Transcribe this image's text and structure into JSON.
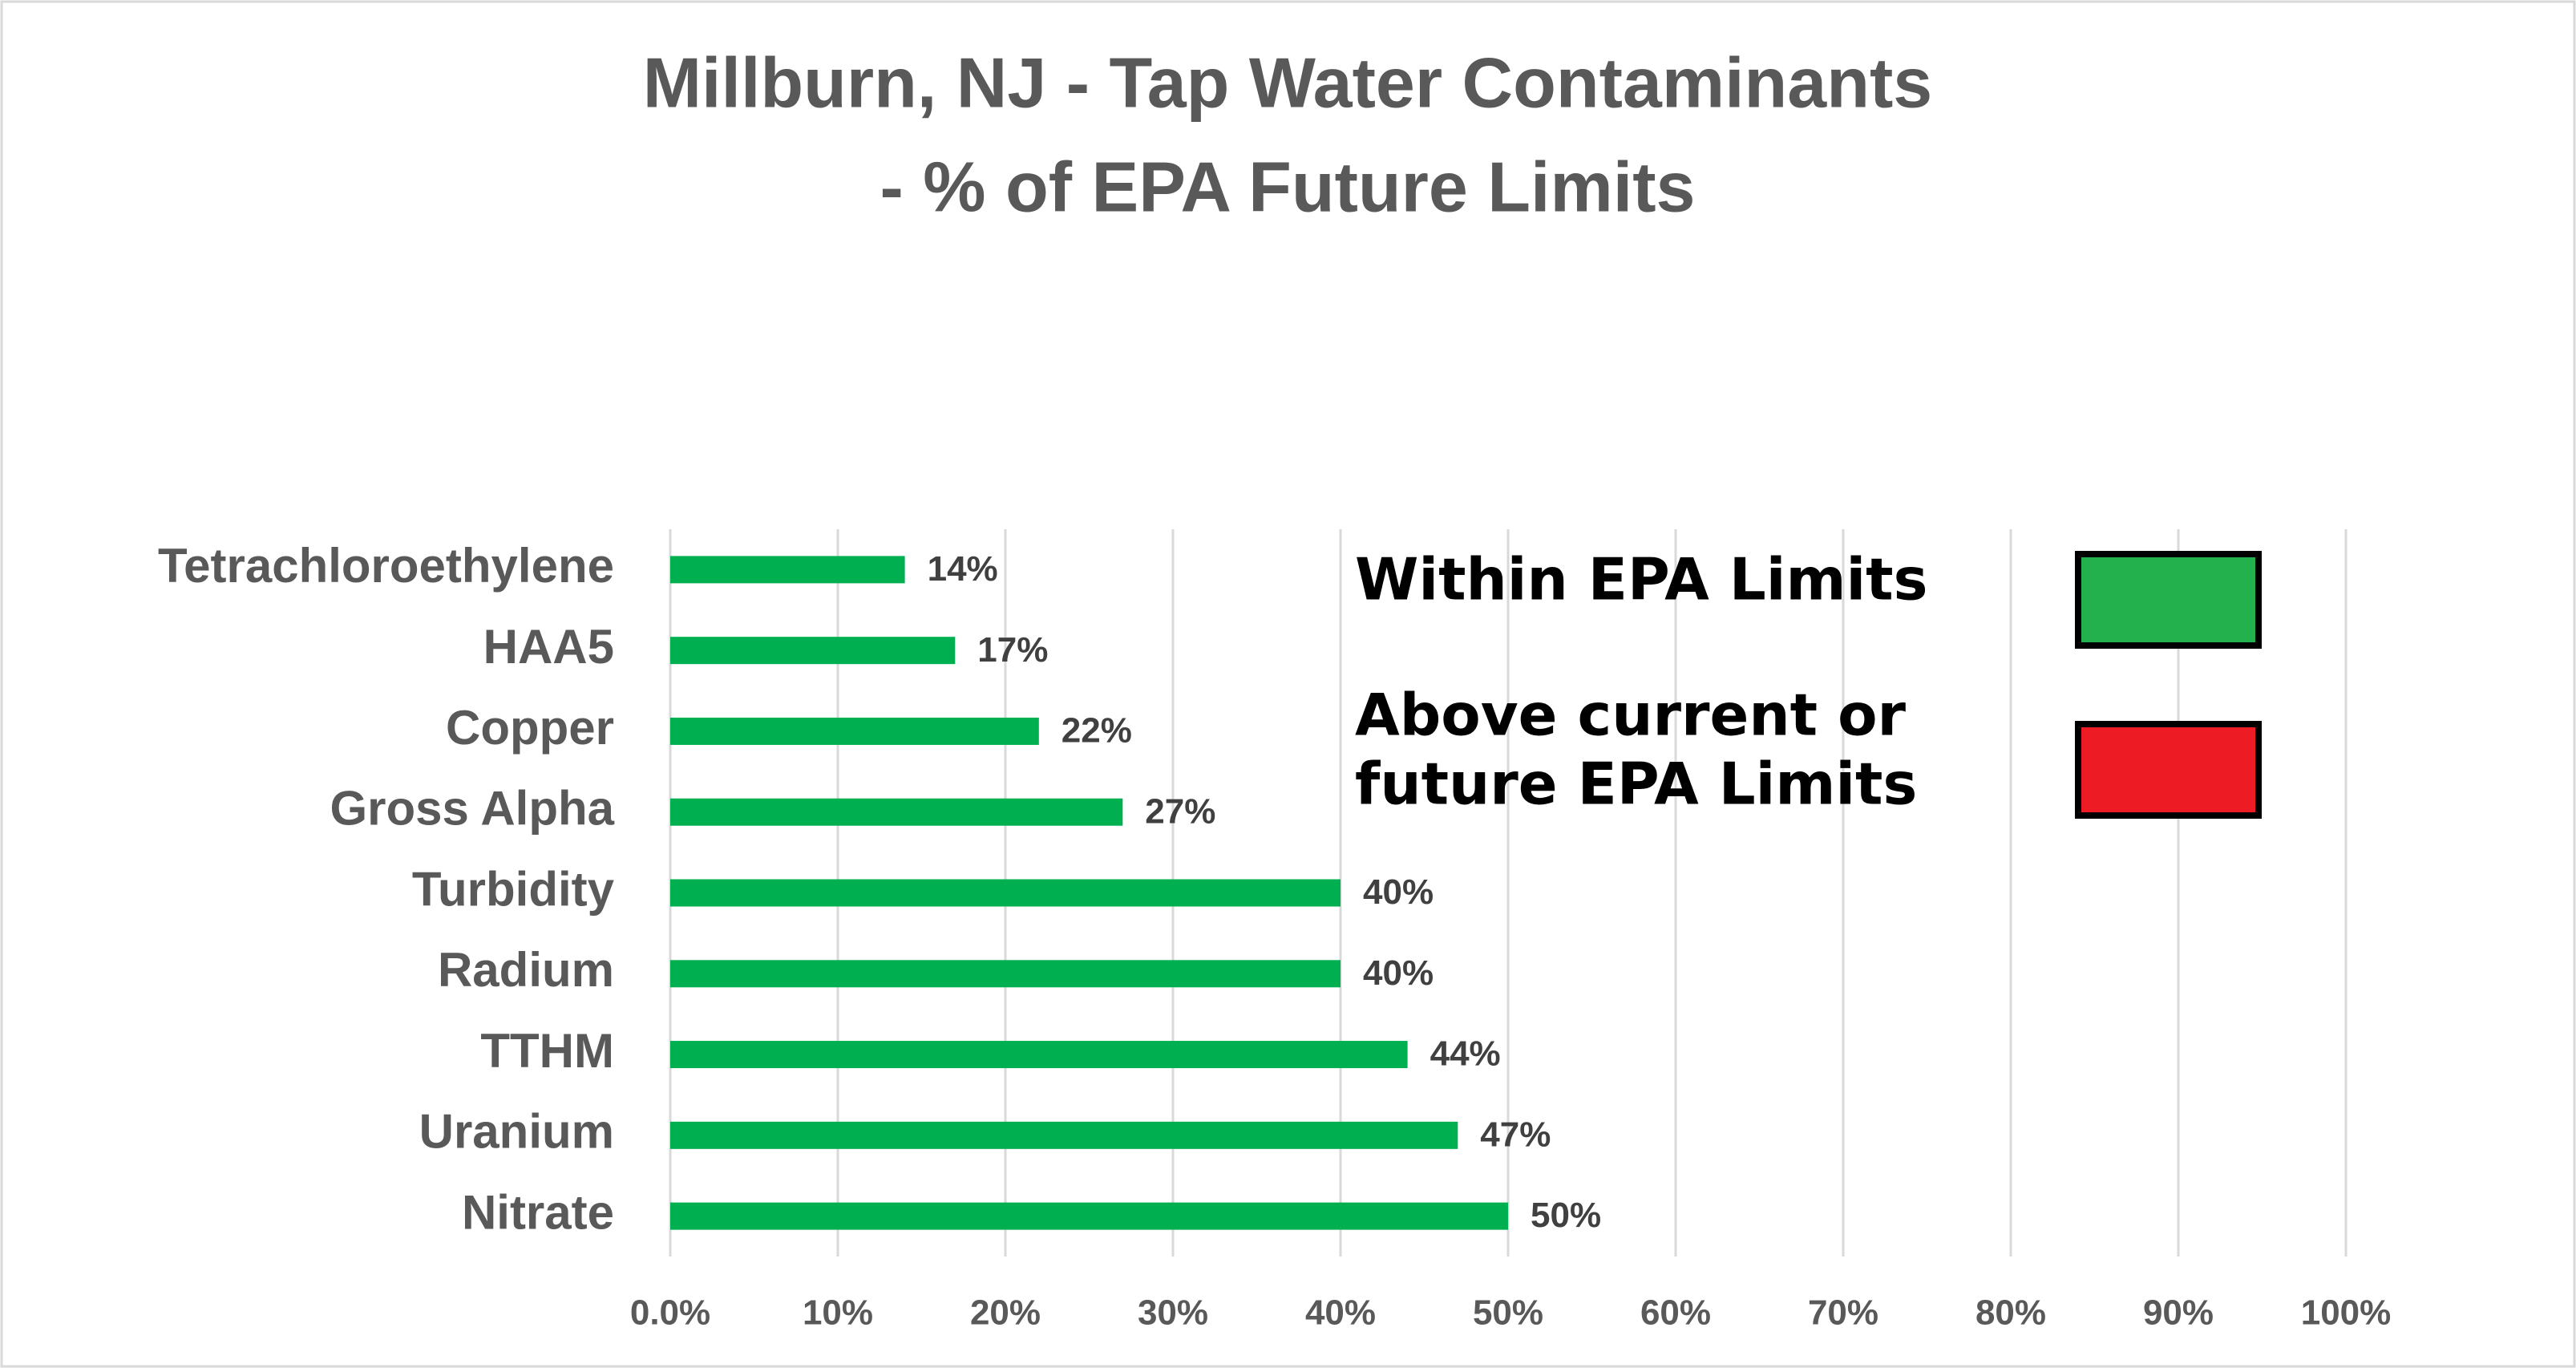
{
  "chart_data": {
    "type": "hbar",
    "title": [
      "Millburn, NJ - Tap Water Contaminants",
      "- % of EPA Future Limits"
    ],
    "categories": [
      "Tetrachloroethylene",
      "HAA5",
      "Copper",
      "Gross Alpha",
      "Turbidity",
      "Radium",
      "TTHM",
      "Uranium",
      "Nitrate"
    ],
    "values": [
      14,
      17,
      22,
      27,
      40,
      40,
      44,
      47,
      50
    ],
    "value_labels": [
      "14%",
      "17%",
      "22%",
      "27%",
      "40%",
      "40%",
      "44%",
      "47%",
      "50%"
    ],
    "color": "#00b050",
    "xlim": [
      0,
      100
    ],
    "xticks": [
      {
        "value": 0,
        "label": "0.0%"
      },
      {
        "value": 10,
        "label": "10%"
      },
      {
        "value": 20,
        "label": "20%"
      },
      {
        "value": 30,
        "label": "30%"
      },
      {
        "value": 40,
        "label": "40%"
      },
      {
        "value": 50,
        "label": "50%"
      },
      {
        "value": 60,
        "label": "60%"
      },
      {
        "value": 70,
        "label": "70%"
      },
      {
        "value": 80,
        "label": "80%"
      },
      {
        "value": 90,
        "label": "90%"
      },
      {
        "value": 100,
        "label": "100%"
      }
    ],
    "grid": true,
    "legend": [
      {
        "label": [
          "Within EPA Limits"
        ],
        "color": "#22b14c"
      },
      {
        "label": [
          "Above current or",
          "future EPA Limits"
        ],
        "color": "#ed1c24"
      }
    ]
  }
}
